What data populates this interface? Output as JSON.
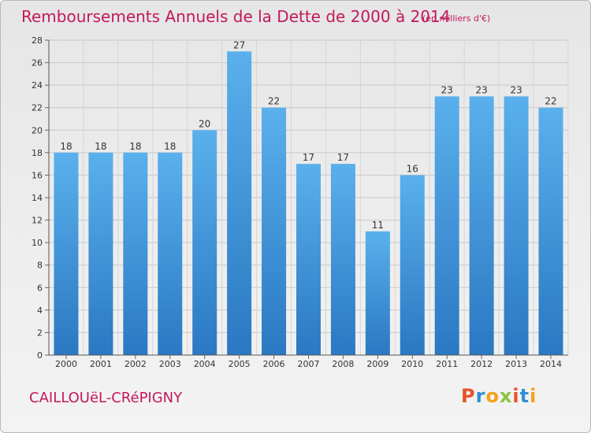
{
  "header": {
    "title": "Remboursements Annuels de la Dette de 2000 à 2014",
    "subtitle": "(en milliers d'€)"
  },
  "footer": {
    "commune": "CAILLOUëL-CRéPIGNY",
    "logo": "Proxiti"
  },
  "colors": {
    "title": "#c2185b",
    "bar": "#3d8fd6",
    "logo_letters": [
      "#e8532a",
      "#2f8fd4",
      "#f4a21b",
      "#8bc43f",
      "#e8532a",
      "#2f8fd4",
      "#f4a21b"
    ]
  },
  "chart_data": {
    "type": "bar",
    "categories": [
      "2000",
      "2001",
      "2002",
      "2003",
      "2004",
      "2005",
      "2006",
      "2007",
      "2008",
      "2009",
      "2010",
      "2011",
      "2012",
      "2013",
      "2014"
    ],
    "values": [
      18,
      18,
      18,
      18,
      20,
      27,
      22,
      17,
      17,
      11,
      16,
      23,
      23,
      23,
      22
    ],
    "ylim": [
      0,
      28
    ],
    "yticks": [
      0,
      2,
      4,
      6,
      8,
      10,
      12,
      14,
      16,
      18,
      20,
      22,
      24,
      26,
      28
    ],
    "grid": true
  }
}
